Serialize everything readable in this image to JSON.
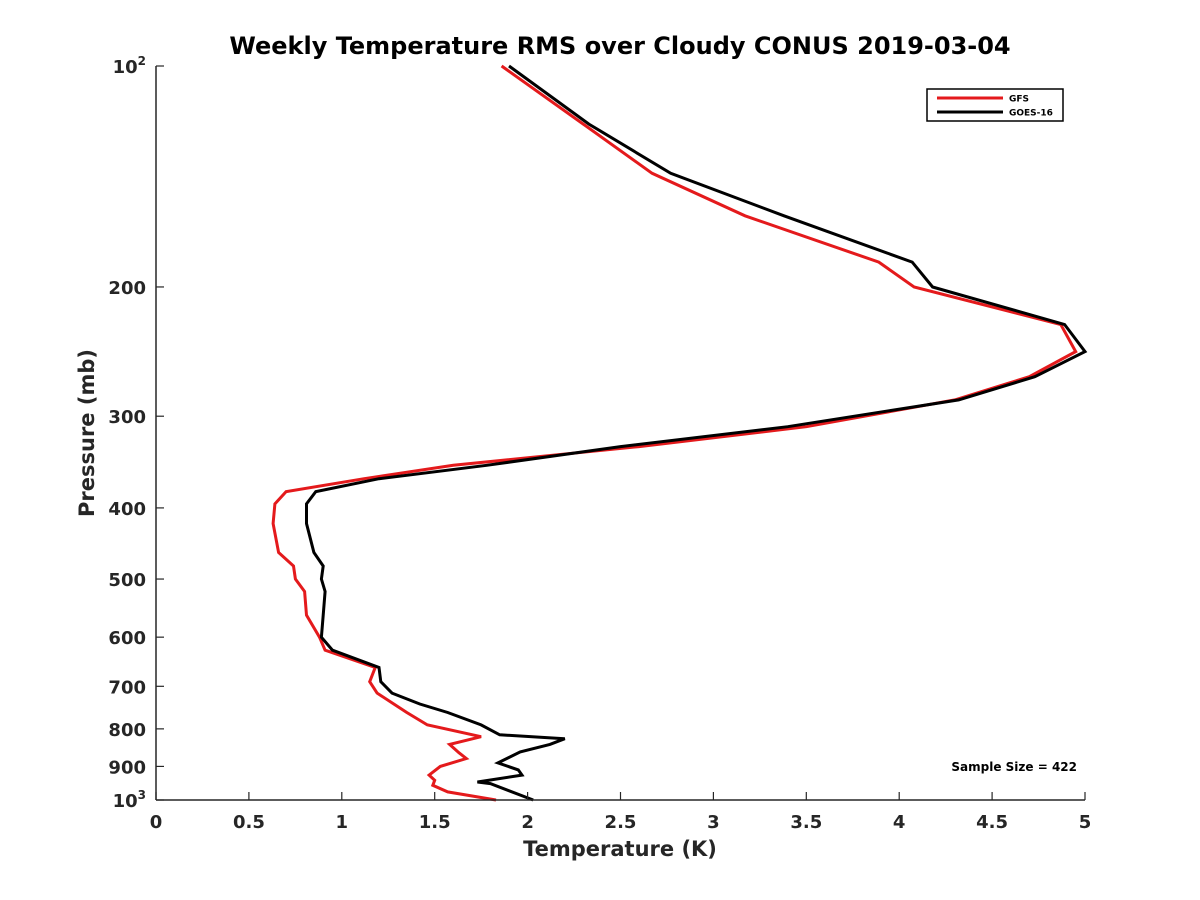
{
  "chart_data": {
    "type": "line",
    "title": "Weekly Temperature RMS over Cloudy CONUS 2019-03-04",
    "xlabel": "Temperature (K)",
    "ylabel": "Pressure (mb)",
    "xlim": [
      0,
      5
    ],
    "ylim": [
      100,
      1000
    ],
    "y_scale": "log",
    "y_reversed": true,
    "x_ticks": [
      "0",
      "0.5",
      "1",
      "1.5",
      "2",
      "2.5",
      "3",
      "3.5",
      "4",
      "4.5",
      "5"
    ],
    "y_ticks": [
      {
        "value": 100,
        "base": "10",
        "exp": "2"
      },
      {
        "value": 200,
        "label": "200"
      },
      {
        "value": 300,
        "label": "300"
      },
      {
        "value": 400,
        "label": "400"
      },
      {
        "value": 500,
        "label": "500"
      },
      {
        "value": 600,
        "label": "600"
      },
      {
        "value": 700,
        "label": "700"
      },
      {
        "value": 800,
        "label": "800"
      },
      {
        "value": 900,
        "label": "900"
      },
      {
        "value": 1000,
        "base": "10",
        "exp": "3"
      }
    ],
    "legend_position": "top-right",
    "annotation": "Sample Size = 422",
    "grid": false,
    "series": [
      {
        "name": "GFS",
        "color": "#e41a1c",
        "points": [
          [
            1.86,
            100
          ],
          [
            2.3,
            120
          ],
          [
            2.67,
            140
          ],
          [
            3.17,
            160
          ],
          [
            3.89,
            185
          ],
          [
            4.08,
            200
          ],
          [
            4.87,
            225
          ],
          [
            4.95,
            245
          ],
          [
            4.7,
            265
          ],
          [
            4.3,
            285
          ],
          [
            3.5,
            310
          ],
          [
            2.6,
            330
          ],
          [
            1.6,
            350
          ],
          [
            1.12,
            365
          ],
          [
            0.7,
            380
          ],
          [
            0.64,
            395
          ],
          [
            0.63,
            420
          ],
          [
            0.66,
            460
          ],
          [
            0.74,
            480
          ],
          [
            0.75,
            500
          ],
          [
            0.8,
            520
          ],
          [
            0.81,
            560
          ],
          [
            0.88,
            600
          ],
          [
            0.91,
            625
          ],
          [
            1.18,
            660
          ],
          [
            1.15,
            690
          ],
          [
            1.19,
            715
          ],
          [
            1.28,
            740
          ],
          [
            1.35,
            760
          ],
          [
            1.46,
            790
          ],
          [
            1.75,
            820
          ],
          [
            1.58,
            840
          ],
          [
            1.63,
            862
          ],
          [
            1.67,
            878
          ],
          [
            1.53,
            900
          ],
          [
            1.47,
            925
          ],
          [
            1.5,
            940
          ],
          [
            1.49,
            955
          ],
          [
            1.57,
            975
          ],
          [
            1.83,
            1000
          ]
        ]
      },
      {
        "name": "GOES-16",
        "color": "#000000",
        "points": [
          [
            1.9,
            100
          ],
          [
            2.33,
            120
          ],
          [
            2.77,
            140
          ],
          [
            3.38,
            160
          ],
          [
            4.07,
            185
          ],
          [
            4.18,
            200
          ],
          [
            4.89,
            225
          ],
          [
            5.0,
            245
          ],
          [
            4.73,
            265
          ],
          [
            4.32,
            285
          ],
          [
            3.4,
            310
          ],
          [
            2.5,
            330
          ],
          [
            1.78,
            350
          ],
          [
            1.2,
            365
          ],
          [
            0.86,
            380
          ],
          [
            0.81,
            395
          ],
          [
            0.81,
            420
          ],
          [
            0.85,
            460
          ],
          [
            0.9,
            480
          ],
          [
            0.89,
            500
          ],
          [
            0.91,
            520
          ],
          [
            0.9,
            560
          ],
          [
            0.89,
            600
          ],
          [
            0.95,
            625
          ],
          [
            1.2,
            660
          ],
          [
            1.21,
            690
          ],
          [
            1.27,
            715
          ],
          [
            1.42,
            740
          ],
          [
            1.57,
            760
          ],
          [
            1.75,
            790
          ],
          [
            1.85,
            815
          ],
          [
            2.2,
            825
          ],
          [
            2.12,
            840
          ],
          [
            1.96,
            860
          ],
          [
            1.84,
            890
          ],
          [
            1.95,
            910
          ],
          [
            1.97,
            925
          ],
          [
            1.73,
            945
          ],
          [
            1.8,
            950
          ],
          [
            2.03,
            1000
          ]
        ]
      }
    ]
  }
}
